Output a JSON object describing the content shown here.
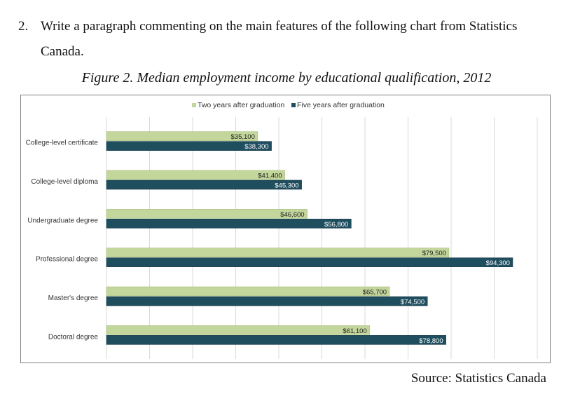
{
  "question": {
    "number": "2.",
    "text": "Write a paragraph commenting on the main features of the following chart from Statistics Canada."
  },
  "figure_title": "Figure 2. Median employment income by educational qualification, 2012",
  "source": "Source: Statistics Canada",
  "colors": {
    "two_years": "#c3d69b",
    "five_years": "#1f4e5f",
    "grid": "#d9d9d9",
    "border": "#7f7f7f"
  },
  "chart_data": {
    "type": "bar",
    "orientation": "horizontal",
    "categories": [
      "College-level certificate",
      "College-level diploma",
      "Undergraduate degree",
      "Professional degree",
      "Master's degree",
      "Doctoral degree"
    ],
    "series": [
      {
        "name": "Two years after graduation",
        "values": [
          35100,
          41400,
          46600,
          79500,
          65700,
          61100
        ],
        "labels": [
          "$35,100",
          "$41,400",
          "$46,600",
          "$79,500",
          "$65,700",
          "$61,100"
        ]
      },
      {
        "name": "Five years after graduation",
        "values": [
          38300,
          45300,
          56800,
          94300,
          74500,
          78800
        ],
        "labels": [
          "$38,300",
          "$45,300",
          "$56,800",
          "$94,300",
          "$74,500",
          "$78,800"
        ]
      }
    ],
    "title": "",
    "xlabel": "",
    "ylabel": "",
    "xlim": [
      0,
      100000
    ],
    "grid": true,
    "legend_position": "top"
  }
}
